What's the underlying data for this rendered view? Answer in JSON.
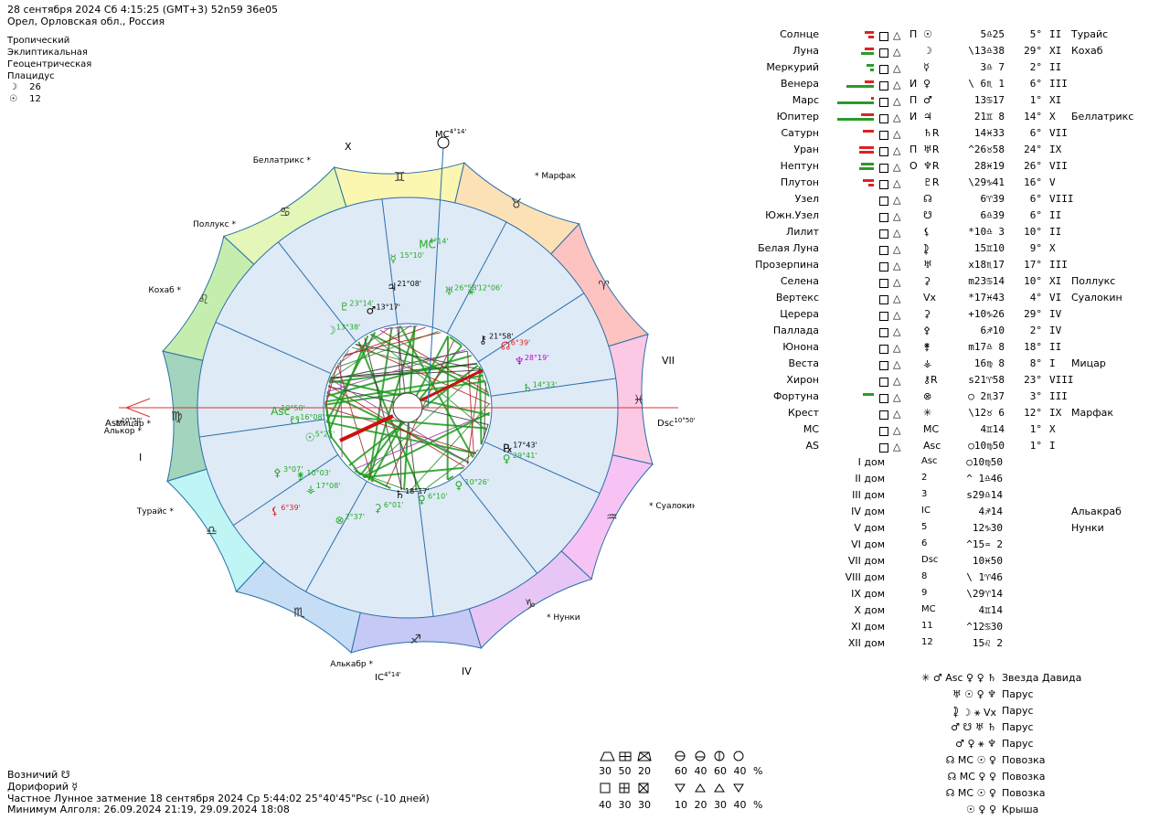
{
  "header": {
    "line1": "28 сентября 2024  Сб   4:15:25 (GMT+3) 52n59  36e05",
    "line2": "Орел, Орловская обл., Россия",
    "settings": [
      "Тропический",
      "Эклиптикальная",
      "Геоцентрическая",
      "Плацидус"
    ],
    "moon_day_icon": "☽",
    "moon_day": "26",
    "sun_day_icon": "☉",
    "sun_day": "12"
  },
  "wheel": {
    "house_labels": {
      "X": "X",
      "I": "I",
      "IV": "IV",
      "VII": "VII"
    },
    "angles": {
      "mc": "MC",
      "mc_deg": "4°14'",
      "ic": "IC",
      "ic_deg": "4°14'",
      "asc": "Asc",
      "asc_deg": "10°50'",
      "dsc": "Dsc",
      "dsc_deg": "10°50'"
    },
    "signs": [
      {
        "glyph": "♍",
        "color": "#a3d4bd"
      },
      {
        "glyph": "♌",
        "color": "#c5eeae"
      },
      {
        "glyph": "♋",
        "color": "#e4f7b8"
      },
      {
        "glyph": "♊",
        "color": "#fbf6b0"
      },
      {
        "glyph": "♉",
        "color": "#fde1b6"
      },
      {
        "glyph": "♈",
        "color": "#fcc3c1"
      },
      {
        "glyph": "♓",
        "color": "#fdc8e4"
      },
      {
        "glyph": "♒",
        "color": "#f7c3f5"
      },
      {
        "glyph": "♑",
        "color": "#e7c6f5"
      },
      {
        "glyph": "♐",
        "color": "#c6c8f5"
      },
      {
        "glyph": "♏",
        "color": "#c5ddf5"
      },
      {
        "glyph": "♎",
        "color": "#bff5f5"
      }
    ],
    "stars": [
      "Беллатрикс",
      "Марфак",
      "Поллукс",
      "Кохаб",
      "Мицар",
      "Алькор",
      "Турайс",
      "Суалокин",
      "Нунки",
      "Алькабр"
    ],
    "planets": [
      {
        "g": "MC",
        "t": "4°14'",
        "c": "#22aa22"
      },
      {
        "g": "☿",
        "t": "15°10'",
        "c": "#22aa22"
      },
      {
        "g": "♃",
        "t": "21°08'",
        "c": "#000000"
      },
      {
        "g": "♅",
        "t": "26°58'",
        "c": "#22aa22"
      },
      {
        "g": "⚹",
        "t": "12°06'",
        "c": "#22aa22"
      },
      {
        "g": "♇",
        "t": "23°14'",
        "c": "#22aa22"
      },
      {
        "g": "♂",
        "t": "13°17'",
        "c": "#000000"
      },
      {
        "g": "☽",
        "t": "13°38'",
        "c": "#22aa22"
      },
      {
        "g": "⚷",
        "t": "21°58'",
        "c": "#000000"
      },
      {
        "g": "☊",
        "t": "6°39'",
        "c": "#dd2222"
      },
      {
        "g": "♆",
        "t": "28°19'",
        "c": "#cc00cc"
      },
      {
        "g": "♄",
        "t": "14°33'",
        "c": "#22aa22"
      },
      {
        "g": "Asc",
        "t": "10°50'",
        "c": "#22aa22"
      },
      {
        "g": "☋",
        "t": "16°08'",
        "c": "#22aa22"
      },
      {
        "g": "☉",
        "t": "5°25'",
        "c": "#22aa22"
      },
      {
        "g": "⚴",
        "t": "3°07'",
        "c": "#22aa22"
      },
      {
        "g": "⚵",
        "t": "10°03'",
        "c": "#22aa22"
      },
      {
        "g": "⚶",
        "t": "17°08'",
        "c": "#22aa22"
      },
      {
        "g": "⚸",
        "t": "6°39'",
        "c": "#dd2222"
      },
      {
        "g": "⊗",
        "t": "2°37'",
        "c": "#22aa22"
      },
      {
        "g": "⚳",
        "t": "6°01'",
        "c": "#22aa22"
      },
      {
        "g": "♄",
        "t": "18°17'",
        "c": "#000000"
      },
      {
        "g": "♀",
        "t": "6°10'",
        "c": "#22aa22"
      },
      {
        "g": "♀",
        "t": "10°26'",
        "c": "#22aa22"
      },
      {
        "g": "♀",
        "t": "29°41'",
        "c": "#22aa22"
      },
      {
        "g": "℞",
        "t": "17°43'",
        "c": "#000000"
      }
    ]
  },
  "planet_table": [
    {
      "name": "Солнце",
      "p": "П",
      "glyph": "☉",
      "pos": "5♎25",
      "deg": "5°",
      "house": "II",
      "star": "Турайс"
    },
    {
      "name": "Луна",
      "p": "",
      "glyph": "☽",
      "pos": "\\13♎38",
      "deg": "29°",
      "house": "XI",
      "star": "Кохаб"
    },
    {
      "name": "Меркурий",
      "p": "",
      "glyph": "☿",
      "pos": "3♎ 7",
      "deg": "2°",
      "house": "II",
      "star": ""
    },
    {
      "name": "Венера",
      "p": "И",
      "glyph": "♀",
      "pos": "\\ 6♏ 1",
      "deg": "6°",
      "house": "III",
      "star": ""
    },
    {
      "name": "Марс",
      "p": "П",
      "glyph": "♂",
      "pos": "13♋17",
      "deg": "1°",
      "house": "XI",
      "star": ""
    },
    {
      "name": "Юпитер",
      "p": "И",
      "glyph": "♃",
      "pos": "21♊ 8",
      "deg": "14°",
      "house": "X",
      "star": "Беллатрикс"
    },
    {
      "name": "Сатурн",
      "p": "",
      "glyph": "♄R",
      "pos": "14♓33",
      "deg": "6°",
      "house": "VII",
      "star": ""
    },
    {
      "name": "Уран",
      "p": "П",
      "glyph": "♅R",
      "pos": "^26♉58",
      "deg": "24°",
      "house": "IX",
      "star": ""
    },
    {
      "name": "Нептун",
      "p": "О",
      "glyph": "♆R",
      "pos": "28♓19",
      "deg": "26°",
      "house": "VII",
      "star": ""
    },
    {
      "name": "Плутон",
      "p": "",
      "glyph": "♇R",
      "pos": "\\29♑41",
      "deg": "16°",
      "house": "V",
      "star": ""
    },
    {
      "name": "Узел",
      "p": "",
      "glyph": "☊",
      "pos": "6♈39",
      "deg": "6°",
      "house": "VIII",
      "star": ""
    },
    {
      "name": "Южн.Узел",
      "p": "",
      "glyph": "☋",
      "pos": "6♎39",
      "deg": "6°",
      "house": "II",
      "star": ""
    },
    {
      "name": "Лилит",
      "p": "",
      "glyph": "⚸",
      "pos": "*10♎ 3",
      "deg": "10°",
      "house": "II",
      "star": ""
    },
    {
      "name": "Белая Луна",
      "p": "",
      "glyph": "⯝",
      "pos": "15♊10",
      "deg": "9°",
      "house": "X",
      "star": ""
    },
    {
      "name": "Прозерпина",
      "p": "",
      "glyph": "♅",
      "pos": "x18♏17",
      "deg": "17°",
      "house": "III",
      "star": ""
    },
    {
      "name": "Селена",
      "p": "",
      "glyph": "⚳",
      "pos": "m23♋14",
      "deg": "10°",
      "house": "XI",
      "star": "Поллукс"
    },
    {
      "name": "Вертекс",
      "p": "",
      "glyph": "Vx",
      "pos": "*17♓43",
      "deg": "4°",
      "house": "VI",
      "star": "Суалокин"
    },
    {
      "name": "Церера",
      "p": "",
      "glyph": "⚳",
      "pos": "+10♑26",
      "deg": "29°",
      "house": "IV",
      "star": ""
    },
    {
      "name": "Паллада",
      "p": "",
      "glyph": "⚴",
      "pos": "6♐10",
      "deg": "2°",
      "house": "IV",
      "star": ""
    },
    {
      "name": "Юнона",
      "p": "",
      "glyph": "⚵",
      "pos": "m17♎ 8",
      "deg": "18°",
      "house": "II",
      "star": ""
    },
    {
      "name": "Веста",
      "p": "",
      "glyph": "⚶",
      "pos": "16♍ 8",
      "deg": "8°",
      "house": "I",
      "star": "Мицар"
    },
    {
      "name": "Хирон",
      "p": "",
      "glyph": "⚷R",
      "pos": "s21♈58",
      "deg": "23°",
      "house": "VIII",
      "star": ""
    },
    {
      "name": "Фортуна",
      "p": "",
      "glyph": "⊗",
      "pos": "○ 2♏37",
      "deg": "3°",
      "house": "III",
      "star": ""
    },
    {
      "name": "Крест",
      "p": "",
      "glyph": "✳",
      "pos": "\\12♉ 6",
      "deg": "12°",
      "house": "IX",
      "star": "Марфак"
    },
    {
      "name": "MC",
      "p": "",
      "glyph": "MC",
      "pos": "4♊14",
      "deg": "1°",
      "house": "X",
      "star": ""
    },
    {
      "name": "AS",
      "p": "",
      "glyph": "Asc",
      "pos": "○10♍50",
      "deg": "1°",
      "house": "I",
      "star": ""
    }
  ],
  "house_table": [
    {
      "name": "I дом",
      "glyph": "Asc",
      "pos": "○10♍50",
      "star": ""
    },
    {
      "name": "II дом",
      "glyph": "2",
      "pos": "^ 1♎46",
      "star": ""
    },
    {
      "name": "III дом",
      "glyph": "3",
      "pos": "s29♎14",
      "star": ""
    },
    {
      "name": "IV дом",
      "glyph": "IC",
      "pos": "4♐14",
      "star": "Альакраб"
    },
    {
      "name": "V дом",
      "glyph": "5",
      "pos": "12♑30",
      "star": "Нунки"
    },
    {
      "name": "VI дом",
      "glyph": "6",
      "pos": "^15♒ 2",
      "star": ""
    },
    {
      "name": "VII дом",
      "glyph": "Dsc",
      "pos": "10♓50",
      "star": ""
    },
    {
      "name": "VIII дом",
      "glyph": "8",
      "pos": "\\ 1♈46",
      "star": ""
    },
    {
      "name": "IX дом",
      "glyph": "9",
      "pos": "\\29♈14",
      "star": ""
    },
    {
      "name": "X дом",
      "glyph": "MC",
      "pos": "4♊14",
      "star": ""
    },
    {
      "name": "XI дом",
      "glyph": "11",
      "pos": "^12♋30",
      "star": ""
    },
    {
      "name": "XII дом",
      "glyph": "12",
      "pos": "15♌ 2",
      "star": ""
    }
  ],
  "figures": [
    {
      "glyphs": "✳ ♂ Asc ♀ ♀ ♄",
      "label": "Звезда Давида"
    },
    {
      "glyphs": "♅ ☉ ♀ ♆",
      "label": "Парус"
    },
    {
      "glyphs": "⯝ ☽ ⚹ Vx",
      "label": "Парус"
    },
    {
      "glyphs": "♂ ☋ ♅ ♄",
      "label": "Парус"
    },
    {
      "glyphs": "♂ ♀ ⚹ ♆",
      "label": "Парус"
    },
    {
      "glyphs": "☊ MC ☉ ♀",
      "label": "Повозка"
    },
    {
      "glyphs": "☊ MC ♀ ♀",
      "label": "Повозка"
    },
    {
      "glyphs": "☊ MC ☉ ♀",
      "label": "Повозка"
    },
    {
      "glyphs": "☉ ♀ ♀",
      "label": "Крыша"
    }
  ],
  "stats": {
    "row1_vals": [
      "30",
      "50",
      "20"
    ],
    "row1b_vals": [
      "60",
      "40",
      "60",
      "40 %"
    ],
    "row2_vals": [
      "40",
      "30",
      "30"
    ],
    "row2b_vals": [
      "10",
      "20",
      "30",
      "40 %"
    ]
  },
  "footer": {
    "vozn_label": "Возничий",
    "vozn_glyph": "☋",
    "dor_label": "Дорифорий",
    "dor_glyph": "☿",
    "eclipse": "Частное Лунное затмение 18 сентября 2024 Ср  5:44:02 25°40'45\"Psc (-10 дней)",
    "algol": "Минимум Алголя: 26.09.2024 21:19,  29.09.2024 18:08"
  }
}
